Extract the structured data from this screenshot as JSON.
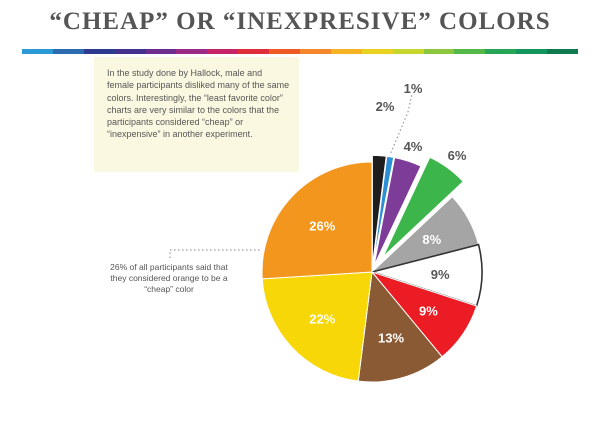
{
  "header": {
    "title": "“CHEAP” OR “INEXPRESIVE” COLORS"
  },
  "stripe_colors": [
    "#2c9ad6",
    "#2b6cb0",
    "#2d3a8f",
    "#44308d",
    "#6c2d8f",
    "#9a2a86",
    "#c52468",
    "#e02d3a",
    "#ee5a24",
    "#f3872a",
    "#f5b324",
    "#e9d21f",
    "#c6d62c",
    "#8cc63e",
    "#53b848",
    "#25a555",
    "#13955e",
    "#0f7a4e"
  ],
  "note": {
    "text": "In the study done by Hallock, male and female participants disliked many of the same colors. Interestingly, the “least favorite color” charts are very similar to the colors that the participants considered “cheap” or “inexpensive” in another experiment."
  },
  "callout": {
    "text": "26% of all participants said that they considered orange to be a “cheap” color"
  },
  "chart_data": {
    "type": "pie",
    "title": "“CHEAP” OR “INEXPRESIVE” COLORS",
    "slices": [
      {
        "color_name": "black",
        "value": 2,
        "label": "2%",
        "color": "#1e1e1e",
        "label_color": "#555555",
        "explode": 0.06
      },
      {
        "color_name": "blue",
        "value": 1,
        "label": "1%",
        "color": "#2a8fd4",
        "label_color": "#555555",
        "explode": 0.06
      },
      {
        "color_name": "purple",
        "value": 4,
        "label": "4%",
        "color": "#7d3c98",
        "label_color": "#555555",
        "explode": 0.06
      },
      {
        "color_name": "green",
        "value": 6,
        "label": "6%",
        "color": "#3cb54a",
        "label_color": "#555555",
        "explode": 0.17
      },
      {
        "color_name": "gray",
        "value": 8,
        "label": "8%",
        "color": "#a5a5a5",
        "label_color": "#ffffff",
        "explode": 0.0
      },
      {
        "color_name": "white",
        "value": 9,
        "label": "9%",
        "color": "#ffffff",
        "label_color": "#555555",
        "explode": 0.0
      },
      {
        "color_name": "red",
        "value": 9,
        "label": "9%",
        "color": "#ec1c24",
        "label_color": "#ffffff",
        "explode": 0.0
      },
      {
        "color_name": "brown",
        "value": 13,
        "label": "13%",
        "color": "#8a5a34",
        "label_color": "#ffffff",
        "explode": 0.0
      },
      {
        "color_name": "yellow",
        "value": 22,
        "label": "22%",
        "color": "#f7d708",
        "label_color": "#ffffff",
        "explode": 0.0
      },
      {
        "color_name": "orange",
        "value": 26,
        "label": "26%",
        "color": "#f3961d",
        "label_color": "#ffffff",
        "explode": 0.0
      }
    ]
  }
}
